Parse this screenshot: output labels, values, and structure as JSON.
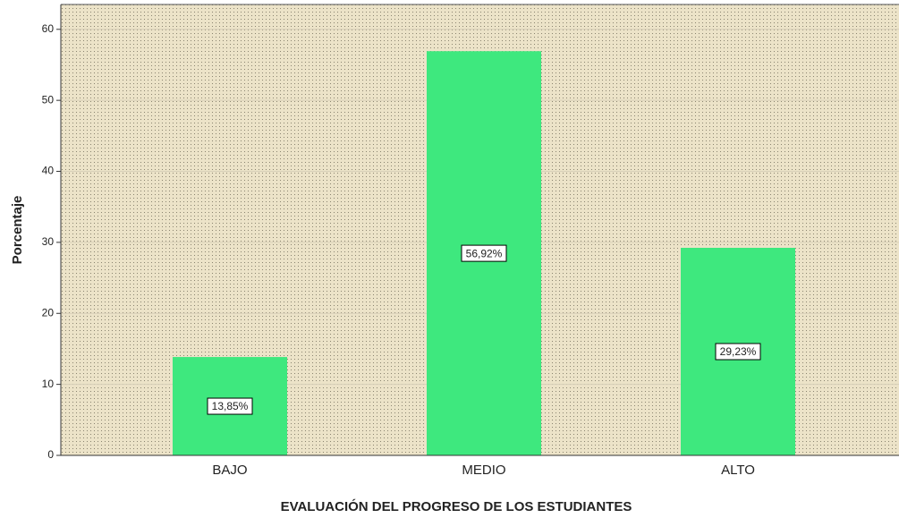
{
  "chart_data": {
    "type": "bar",
    "x_label": "EVALUACIÓN DEL PROGRESO DE LOS ESTUDIANTES",
    "y_label": "Porcentaje",
    "categories": [
      "BAJO",
      "MEDIO",
      "ALTO"
    ],
    "values": [
      13.85,
      56.92,
      29.23
    ],
    "value_labels": [
      "13,85%",
      "56,92%",
      "29,23%"
    ],
    "color": "#3ee87e",
    "ylim": [
      0,
      63.5
    ],
    "yticks": [
      0,
      10,
      20,
      30,
      40,
      50,
      60
    ],
    "grid": true
  }
}
